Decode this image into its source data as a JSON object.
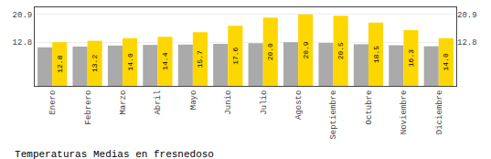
{
  "chart_data": {
    "type": "bar",
    "title": "Temperaturas Medias en fresnedoso",
    "categories": [
      "Enero",
      "Febrero",
      "Marzo",
      "Abril",
      "Mayo",
      "Junio",
      "Julio",
      "Agosto",
      "Septiembre",
      "Octubre",
      "Noviembre",
      "Diciembre"
    ],
    "series": [
      {
        "color": "#AAAAAA",
        "values": [
          11.3,
          11.5,
          11.8,
          12.0,
          12.1,
          12.3,
          12.5,
          12.8,
          12.6,
          12.2,
          11.9,
          11.6
        ]
      },
      {
        "color": "#FFD700",
        "values": [
          12.8,
          13.2,
          14.0,
          14.4,
          15.7,
          17.6,
          20.0,
          20.9,
          20.5,
          18.5,
          16.3,
          14.0
        ],
        "value_labels": [
          "12.8",
          "13.2",
          "14.0",
          "14.4",
          "15.7",
          "17.6",
          "20.0",
          "20.9",
          "20.5",
          "18.5",
          "16.3",
          "14.0"
        ],
        "data_labels": true
      }
    ],
    "ylim": [
      0,
      23.0
    ],
    "yticks": [
      12.8,
      20.9
    ],
    "grid": true
  }
}
